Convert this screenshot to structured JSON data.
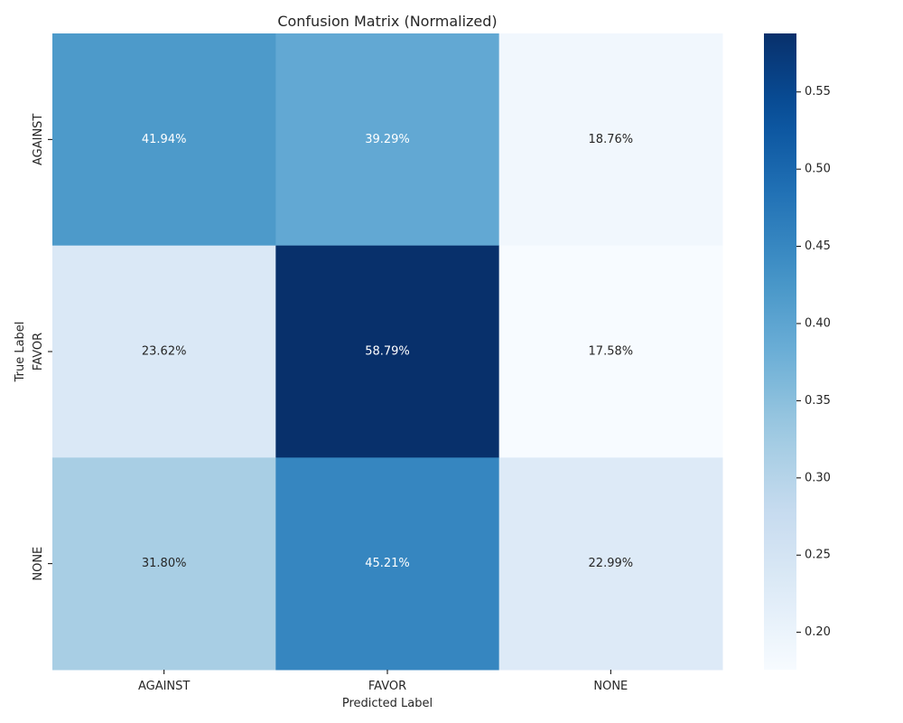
{
  "chart_data": {
    "type": "heatmap",
    "title": "Confusion Matrix (Normalized)",
    "xlabel": "Predicted Label",
    "ylabel": "True Label",
    "x_categories": [
      "AGAINST",
      "FAVOR",
      "NONE"
    ],
    "y_categories": [
      "AGAINST",
      "FAVOR",
      "NONE"
    ],
    "values": [
      [
        0.4194,
        0.3929,
        0.1876
      ],
      [
        0.2362,
        0.5879,
        0.1758
      ],
      [
        0.318,
        0.4521,
        0.2299
      ]
    ],
    "cell_labels": [
      [
        "41.94%",
        "39.29%",
        "18.76%"
      ],
      [
        "23.62%",
        "58.79%",
        "17.58%"
      ],
      [
        "31.80%",
        "45.21%",
        "22.99%"
      ]
    ],
    "colormap": "Blues",
    "colorbar": {
      "range": [
        0.1758,
        0.5879
      ],
      "ticks": [
        0.2,
        0.25,
        0.3,
        0.35,
        0.4,
        0.45,
        0.5,
        0.55
      ],
      "tick_labels": [
        "0.20",
        "0.25",
        "0.30",
        "0.35",
        "0.40",
        "0.45",
        "0.50",
        "0.55"
      ]
    },
    "colors": {
      "text_dark": "#262626",
      "text_light": "#ffffff",
      "axis": "#000000"
    }
  }
}
